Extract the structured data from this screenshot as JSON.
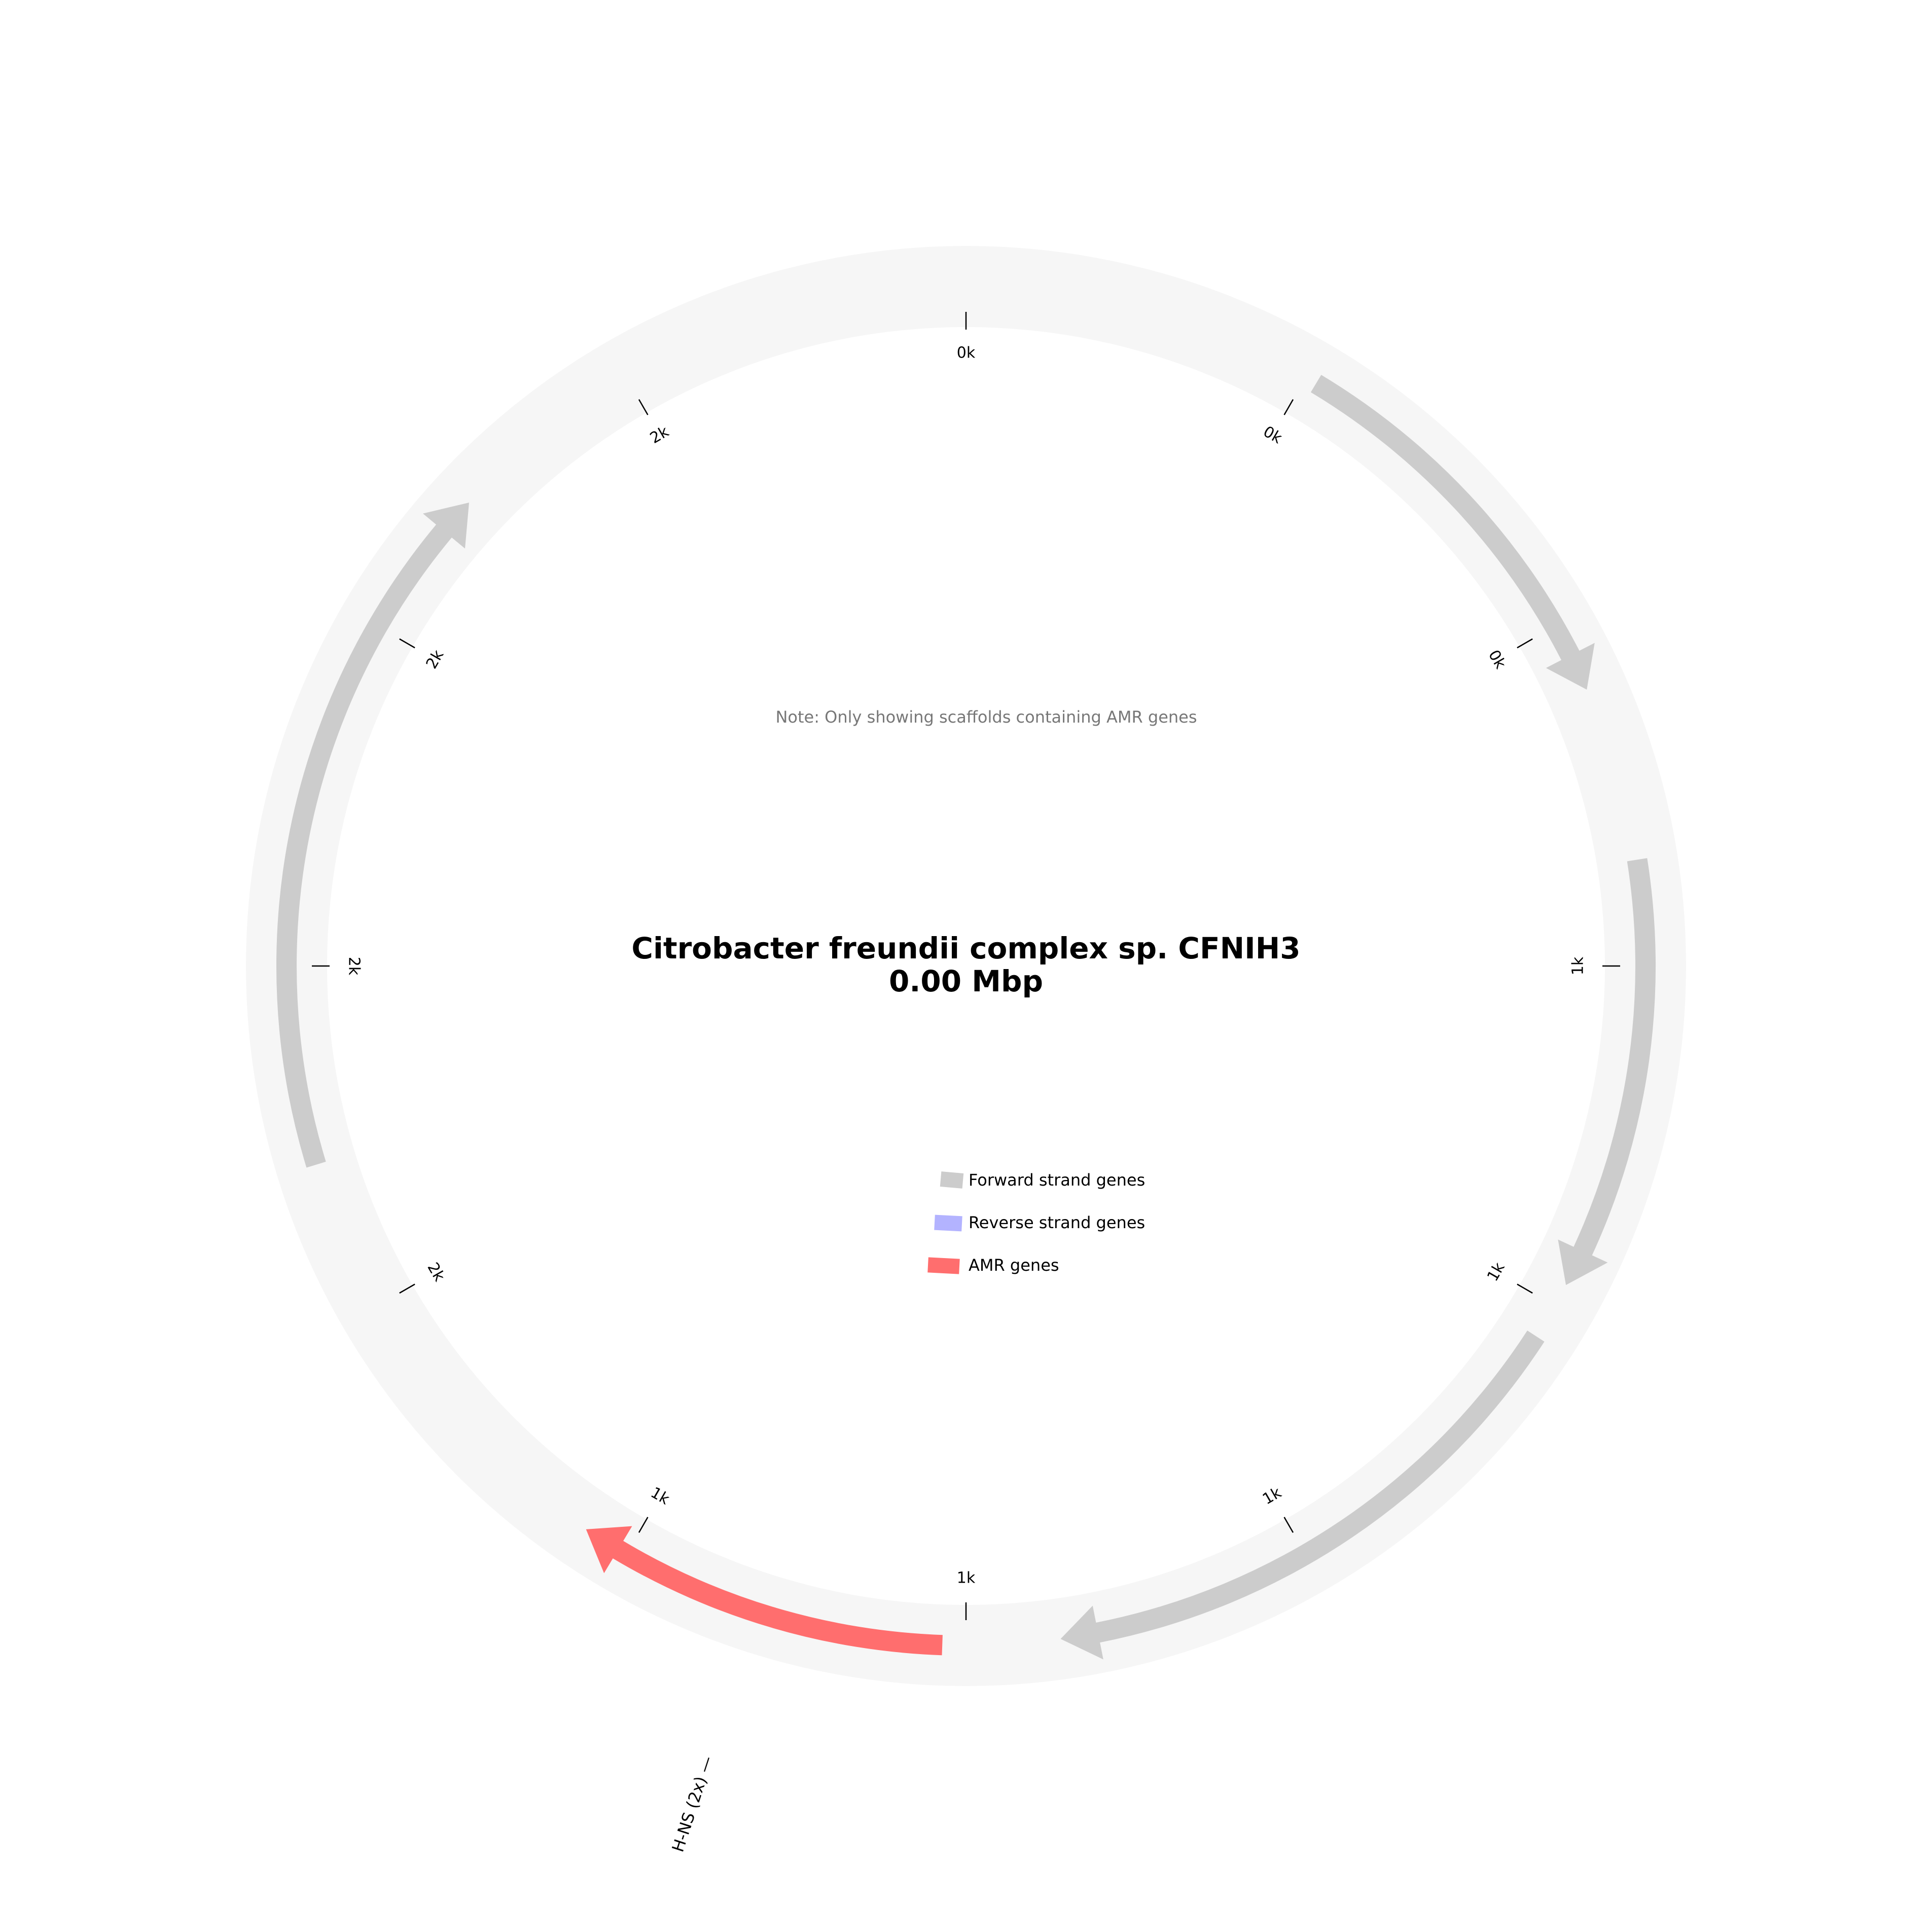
{
  "title": {
    "organism": "Citrobacter freundii complex sp. CFNIH3",
    "size": "0.00 Mbp"
  },
  "note": "Note: Only showing scaffolds containing AMR genes",
  "colors": {
    "backbone": "#f6f6f6",
    "forward": "#cccccc",
    "reverse": "#b3b3ff",
    "amr": "#ff6e6e",
    "tick": "#000000"
  },
  "ticks": [
    {
      "label": "0k",
      "angle_deg": 0
    },
    {
      "label": "0k",
      "angle_deg": 30
    },
    {
      "label": "0k",
      "angle_deg": 60
    },
    {
      "label": "1k",
      "angle_deg": 90
    },
    {
      "label": "1k",
      "angle_deg": 120
    },
    {
      "label": "1k",
      "angle_deg": 150
    },
    {
      "label": "1k",
      "angle_deg": 180
    },
    {
      "label": "1k",
      "angle_deg": 210
    },
    {
      "label": "2k",
      "angle_deg": 240
    },
    {
      "label": "2k",
      "angle_deg": 270
    },
    {
      "label": "2k",
      "angle_deg": 300
    },
    {
      "label": "2k",
      "angle_deg": 330
    }
  ],
  "genes": [
    {
      "type": "forward",
      "start_deg": 31,
      "end_deg": 66
    },
    {
      "type": "forward",
      "start_deg": 81,
      "end_deg": 118
    },
    {
      "type": "forward",
      "start_deg": 123,
      "end_deg": 172
    },
    {
      "type": "amr",
      "start_deg": 182,
      "end_deg": 214,
      "label": "H-NS (2x)"
    },
    {
      "type": "forward",
      "start_deg": 253,
      "end_deg": 313
    }
  ],
  "legend": [
    {
      "label": "Forward strand genes",
      "type": "forward"
    },
    {
      "label": "Reverse strand genes",
      "type": "reverse"
    },
    {
      "label": "AMR genes",
      "type": "amr"
    }
  ]
}
